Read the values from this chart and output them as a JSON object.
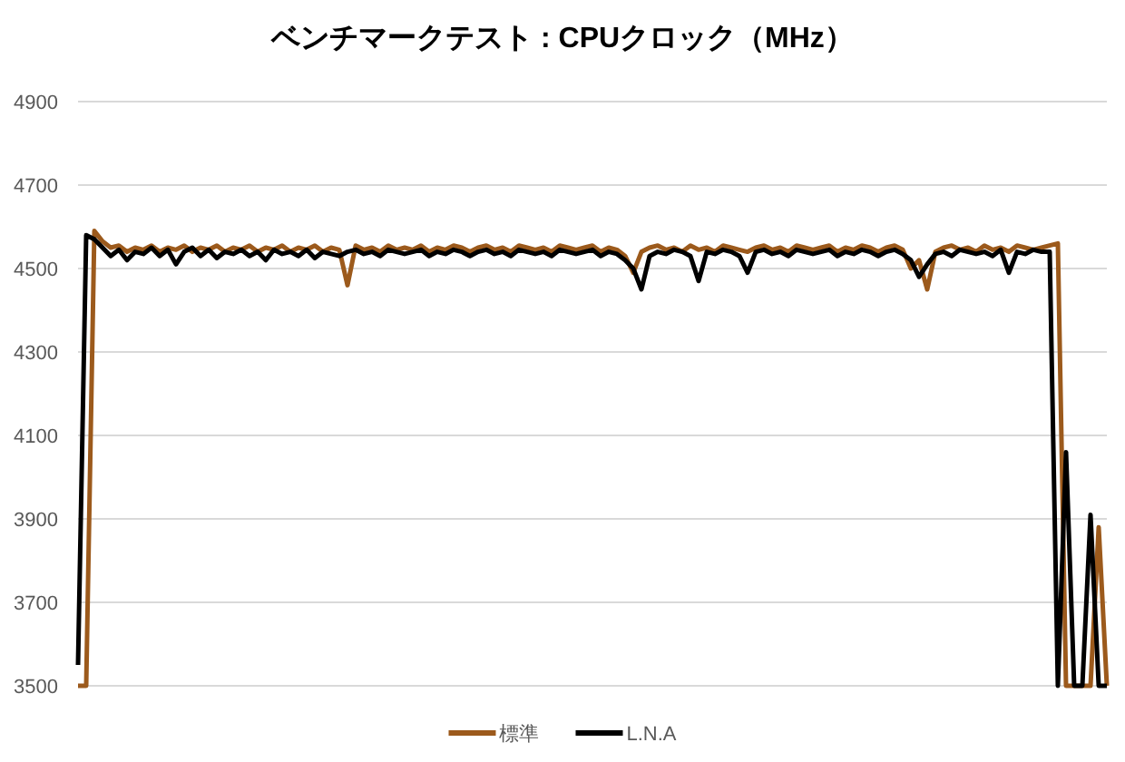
{
  "chart_data": {
    "type": "line",
    "title": "ベンチマークテスト : CPUクロック（MHz）",
    "categories": [
      null,
      null,
      null,
      null,
      null,
      null,
      null,
      null,
      null,
      null,
      null,
      null,
      null,
      null,
      null,
      null,
      null,
      null,
      null,
      null,
      null,
      null,
      null,
      null,
      null,
      null,
      null,
      null,
      null,
      null,
      null,
      null,
      null,
      null,
      null,
      null,
      null,
      null,
      null,
      null,
      null,
      null,
      null,
      null,
      null,
      null,
      null,
      null,
      null,
      null,
      null,
      null,
      null,
      null,
      null,
      null,
      null,
      null,
      null,
      null,
      null,
      null,
      null,
      null,
      null,
      null,
      null,
      null,
      null,
      null,
      null,
      null,
      null,
      null,
      null,
      null,
      null,
      null,
      null,
      null,
      null,
      null,
      null,
      null,
      null,
      null,
      null,
      null,
      null,
      null,
      null,
      null,
      null,
      null,
      null,
      null,
      null,
      null,
      null,
      null,
      null,
      null,
      null,
      null,
      null,
      null,
      null,
      null,
      null,
      null,
      null,
      null,
      null,
      null,
      null,
      null,
      null,
      null,
      null,
      null,
      null,
      null,
      null,
      null,
      null,
      null,
      null
    ],
    "ylim": [
      3500,
      4900
    ],
    "yticks": [
      3500,
      3700,
      3900,
      4100,
      4300,
      4500,
      4700,
      4900
    ],
    "grid": "y",
    "legend": "bottom",
    "series": [
      {
        "name": "標準",
        "color": "#9c5a1c",
        "values": [
          3500,
          3500,
          4590,
          4565,
          4550,
          4555,
          4540,
          4550,
          4545,
          4555,
          4540,
          4550,
          4545,
          4555,
          4540,
          4550,
          4545,
          4555,
          4540,
          4550,
          4545,
          4555,
          4540,
          4550,
          4545,
          4555,
          4540,
          4550,
          4545,
          4555,
          4540,
          4550,
          4545,
          4460,
          4555,
          4545,
          4550,
          4540,
          4555,
          4545,
          4550,
          4545,
          4555,
          4540,
          4550,
          4545,
          4555,
          4550,
          4540,
          4550,
          4555,
          4545,
          4550,
          4540,
          4555,
          4550,
          4545,
          4550,
          4540,
          4555,
          4550,
          4545,
          4550,
          4555,
          4540,
          4550,
          4545,
          4530,
          4490,
          4540,
          4550,
          4555,
          4545,
          4550,
          4540,
          4555,
          4545,
          4550,
          4540,
          4555,
          4550,
          4545,
          4540,
          4550,
          4555,
          4545,
          4550,
          4540,
          4555,
          4550,
          4545,
          4550,
          4555,
          4540,
          4550,
          4545,
          4555,
          4550,
          4540,
          4550,
          4555,
          4545,
          4500,
          4520,
          4450,
          4540,
          4550,
          4555,
          4545,
          4550,
          4540,
          4555,
          4545,
          4550,
          4540,
          4555,
          4550,
          4545,
          4550,
          4555,
          4560,
          3500,
          3500,
          3500,
          3500,
          3880,
          3500
        ]
      },
      {
        "name": "L.N.A",
        "color": "#000000",
        "values": [
          3550,
          4580,
          4570,
          4550,
          4530,
          4545,
          4520,
          4540,
          4535,
          4550,
          4530,
          4545,
          4510,
          4540,
          4550,
          4530,
          4545,
          4525,
          4540,
          4535,
          4545,
          4530,
          4540,
          4520,
          4545,
          4535,
          4540,
          4530,
          4545,
          4525,
          4540,
          4535,
          4530,
          4540,
          4545,
          4535,
          4540,
          4530,
          4545,
          4540,
          4535,
          4540,
          4545,
          4530,
          4540,
          4535,
          4545,
          4540,
          4530,
          4540,
          4545,
          4535,
          4540,
          4530,
          4545,
          4540,
          4535,
          4540,
          4530,
          4545,
          4540,
          4535,
          4540,
          4545,
          4530,
          4540,
          4535,
          4520,
          4500,
          4450,
          4530,
          4540,
          4535,
          4545,
          4540,
          4530,
          4470,
          4540,
          4535,
          4545,
          4540,
          4530,
          4490,
          4540,
          4545,
          4535,
          4540,
          4530,
          4545,
          4540,
          4535,
          4540,
          4545,
          4530,
          4540,
          4535,
          4545,
          4540,
          4530,
          4540,
          4545,
          4535,
          4520,
          4480,
          4510,
          4535,
          4540,
          4530,
          4545,
          4540,
          4535,
          4540,
          4530,
          4545,
          4490,
          4540,
          4535,
          4545,
          4540,
          4540,
          3500,
          4060,
          3500,
          3500,
          3910,
          3500,
          3500
        ]
      }
    ]
  }
}
